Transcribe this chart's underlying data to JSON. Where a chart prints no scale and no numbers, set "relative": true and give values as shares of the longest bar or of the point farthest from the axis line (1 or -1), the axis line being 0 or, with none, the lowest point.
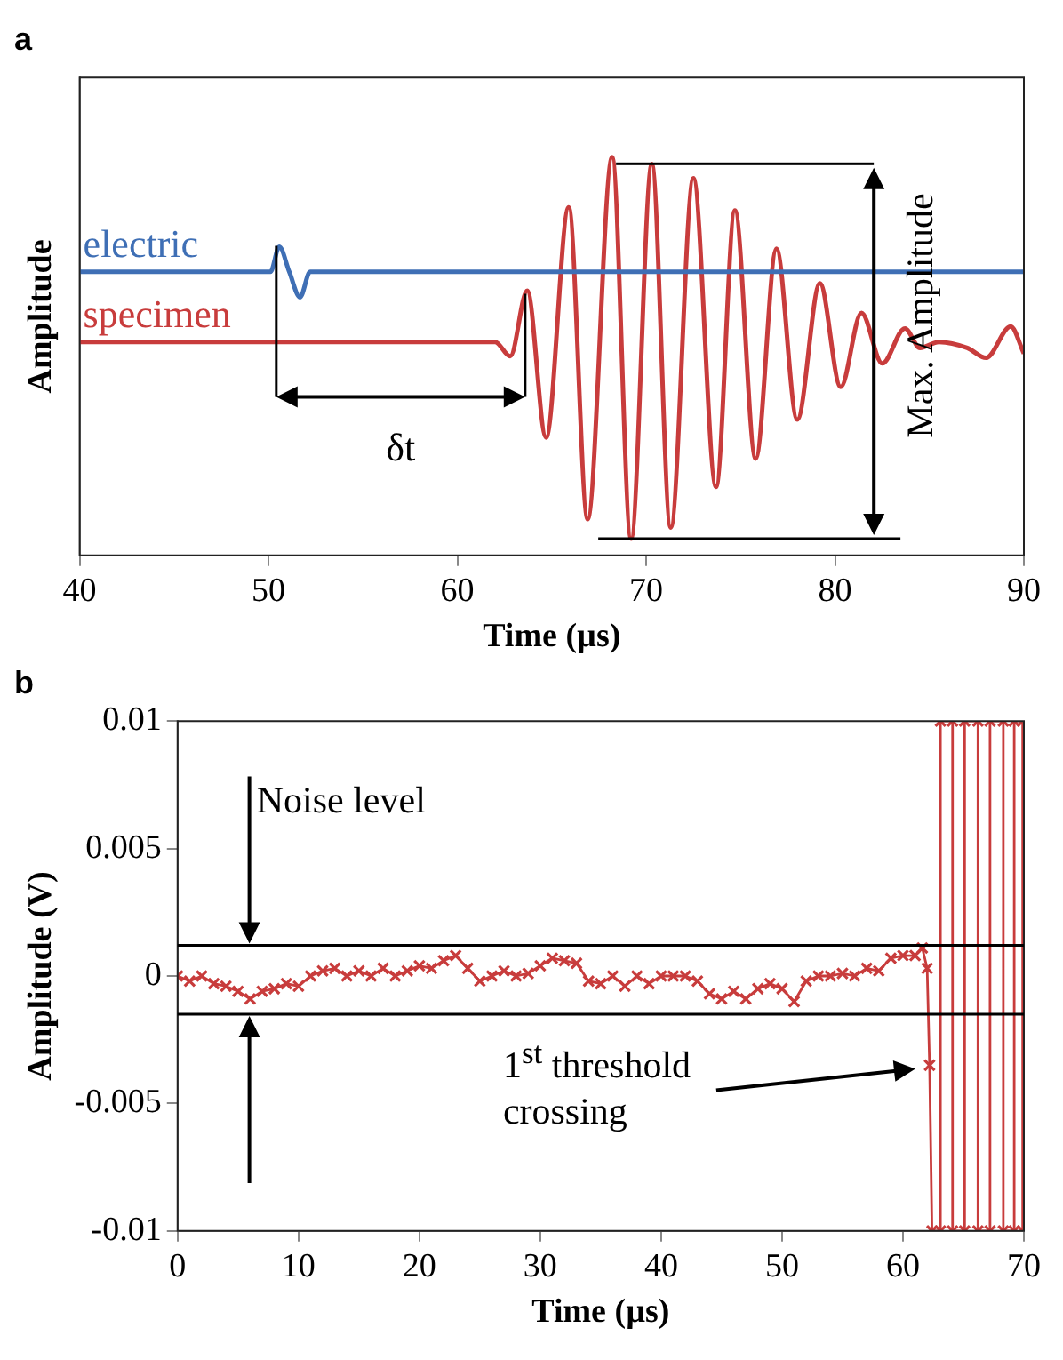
{
  "chart_data": [
    {
      "type": "line",
      "title": "a",
      "xlabel": "Time (µs)",
      "ylabel": "Amplitude",
      "relative": true,
      "xlim": [
        40,
        90
      ],
      "xticks": [
        40,
        50,
        60,
        70,
        80,
        90
      ],
      "grid": false,
      "legend": false,
      "marker": "none",
      "line_style": "solid",
      "annotations": [
        "δt",
        "Max. Amplitude"
      ],
      "series": [
        {
          "name": "electric",
          "color": "#3f6fb5",
          "x": [
            40,
            50.1,
            50.57,
            51.1,
            51.67,
            52.2,
            90
          ],
          "values": [
            0.712,
            0.712,
            0.775,
            0.712,
            0.648,
            0.712,
            0.712
          ]
        },
        {
          "name": "specimen",
          "color": "#c83c3c",
          "x": [
            40,
            60,
            62,
            62.8,
            63.7,
            64.7,
            65.9,
            66.9,
            68.2,
            69.2,
            70.3,
            71.3,
            72.5,
            73.7,
            74.7,
            75.8,
            76.9,
            78.0,
            79.2,
            80.3,
            81.4,
            82.5,
            83.7,
            84.5,
            85.5,
            87,
            88,
            89.3,
            90
          ],
          "values": [
            0.536,
            0.536,
            0.536,
            0.5,
            0.665,
            0.296,
            0.874,
            0.091,
            1,
            0.042,
            0.983,
            0.07,
            0.947,
            0.172,
            0.866,
            0.243,
            0.77,
            0.341,
            0.683,
            0.423,
            0.609,
            0.482,
            0.57,
            0.521,
            0.536,
            0.521,
            0.496,
            0.575,
            0.507
          ]
        }
      ]
    },
    {
      "type": "line",
      "title": "b",
      "xlabel": "Time (µs)",
      "ylabel": "Amplitude (V)",
      "xlim": [
        0,
        70
      ],
      "xticks": [
        0,
        10,
        20,
        30,
        40,
        50,
        60,
        70
      ],
      "ylim": [
        -0.01,
        0.01
      ],
      "yticks": [
        -0.01,
        -0.005,
        0,
        0.005,
        0.01
      ],
      "grid": false,
      "legend": false,
      "marker": "cross",
      "line_style": "solid",
      "ref_lines": [
        {
          "axis": "y",
          "value": 0.0012,
          "color": "#000000"
        },
        {
          "axis": "y",
          "value": -0.0015,
          "color": "#000000"
        }
      ],
      "annotations": [
        "Noise level",
        "1$^{st}$ threshold crossing"
      ],
      "series": [
        {
          "color": "#c83c3c",
          "x": [
            0,
            1,
            2,
            3,
            4,
            5,
            6,
            7,
            8,
            9,
            10,
            11,
            12,
            13,
            14,
            15,
            16,
            17,
            18,
            19,
            20,
            21,
            22,
            23,
            24,
            25,
            26,
            27,
            28,
            29,
            30,
            31,
            32,
            33,
            34,
            35,
            36,
            37,
            38,
            39,
            40,
            41,
            42,
            43,
            44,
            45,
            46,
            47,
            48,
            49,
            50,
            51,
            52,
            53,
            54,
            55,
            56,
            57,
            58,
            59,
            60,
            61,
            61.6,
            62,
            62.2,
            62.4,
            63.1,
            63.1,
            64.1,
            64.1,
            65.1,
            65.1,
            66.2,
            66.2,
            67.2,
            67.2,
            68.3,
            68.3,
            69.2,
            69.2,
            69.9,
            69.9
          ],
          "values": [
            0,
            -0.0002,
            0,
            -0.0003,
            -0.0004,
            -0.0006,
            -0.0009,
            -0.0006,
            -0.0005,
            -0.0003,
            -0.0004,
            0,
            0.0002,
            0.0003,
            0,
            0.0002,
            0,
            0.0003,
            0,
            0.0002,
            0.0004,
            0.0003,
            0.0006,
            0.0008,
            0.0003,
            -0.0002,
            0,
            0.0002,
            0,
            0.0001,
            0.0004,
            0.0007,
            0.0006,
            0.0005,
            -0.0002,
            -0.0003,
            0,
            -0.0004,
            0,
            -0.0003,
            0,
            0,
            0,
            -0.0002,
            -0.0007,
            -0.0009,
            -0.0006,
            -0.0009,
            -0.0005,
            -0.0003,
            -0.0005,
            -0.001,
            -0.0002,
            0,
            0,
            0.0001,
            0,
            0.0003,
            0.0002,
            0.0007,
            0.0008,
            0.0008,
            0.0011,
            0.0003,
            -0.0035,
            -0.01,
            -0.01,
            0.01,
            0.01,
            -0.01,
            -0.01,
            0.01,
            0.01,
            -0.01,
            -0.01,
            0.01,
            0.01,
            -0.01,
            -0.01,
            0.01,
            0.01,
            -0.01
          ]
        }
      ]
    }
  ]
}
